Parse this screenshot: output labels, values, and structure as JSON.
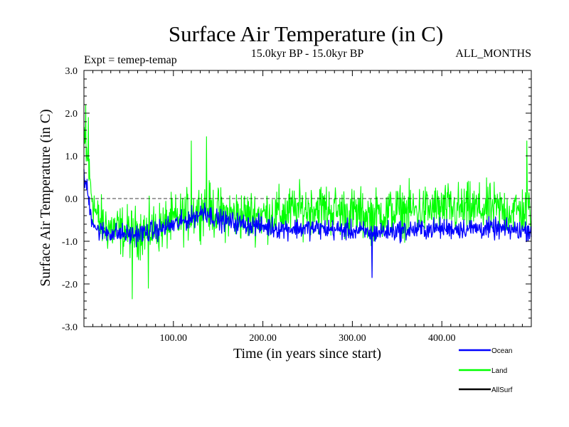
{
  "chart_data": {
    "type": "line",
    "title": "Surface Air Temperature (in C)",
    "subtitle_left": "Expt = temep-temap",
    "subtitle_center": "15.0kyr BP - 15.0kyr BP",
    "subtitle_right": "ALL_MONTHS",
    "xlabel": "Time (in years since start)",
    "ylabel": "Surface Air Temperature (in C)",
    "xlim": [
      0,
      500
    ],
    "ylim": [
      -3.0,
      3.0
    ],
    "x_ticks": [
      100,
      200,
      300,
      400
    ],
    "x_tick_labels": [
      "100.00",
      "200.00",
      "300.00",
      "400.00"
    ],
    "y_ticks": [
      3.0,
      2.0,
      1.0,
      0.0,
      -1.0,
      -2.0,
      -3.0
    ],
    "y_tick_labels": [
      "3.0",
      "2.0",
      "1.0",
      "0.0",
      "-1.0",
      "-2.0",
      "-3.0"
    ],
    "reference_line": 0.0,
    "x_step": 0.5,
    "series": [
      {
        "name": "Land",
        "color": "#00ff00",
        "trend": [
          [
            0,
            1.2
          ],
          [
            3,
            1.0
          ],
          [
            8,
            0.2
          ],
          [
            15,
            -0.5
          ],
          [
            30,
            -0.7
          ],
          [
            55,
            -0.8
          ],
          [
            80,
            -0.7
          ],
          [
            110,
            -0.45
          ],
          [
            135,
            -0.2
          ],
          [
            150,
            -0.35
          ],
          [
            180,
            -0.4
          ],
          [
            220,
            -0.35
          ],
          [
            260,
            -0.2
          ],
          [
            300,
            -0.35
          ],
          [
            320,
            -0.4
          ],
          [
            350,
            -0.3
          ],
          [
            400,
            -0.25
          ],
          [
            450,
            -0.25
          ],
          [
            490,
            -0.3
          ],
          [
            500,
            -0.25
          ]
        ],
        "amplitude": 0.55,
        "extremes": [
          [
            2,
            2.2
          ],
          [
            5,
            1.9
          ],
          [
            54,
            -2.35
          ],
          [
            72,
            -2.1
          ],
          [
            120,
            1.35
          ],
          [
            137,
            1.45
          ],
          [
            322,
            -1.7
          ],
          [
            495,
            1.35
          ]
        ]
      },
      {
        "name": "Ocean",
        "color": "#0000ff",
        "trend": [
          [
            0,
            0.45
          ],
          [
            3,
            0.3
          ],
          [
            8,
            -0.4
          ],
          [
            15,
            -0.75
          ],
          [
            30,
            -0.8
          ],
          [
            55,
            -0.85
          ],
          [
            80,
            -0.75
          ],
          [
            110,
            -0.55
          ],
          [
            135,
            -0.3
          ],
          [
            150,
            -0.5
          ],
          [
            180,
            -0.6
          ],
          [
            220,
            -0.7
          ],
          [
            260,
            -0.7
          ],
          [
            300,
            -0.75
          ],
          [
            320,
            -0.8
          ],
          [
            350,
            -0.75
          ],
          [
            400,
            -0.7
          ],
          [
            450,
            -0.7
          ],
          [
            490,
            -0.75
          ],
          [
            500,
            -0.72
          ]
        ],
        "amplitude": 0.22,
        "extremes": [
          [
            322,
            -1.85
          ],
          [
            135,
            -0.1
          ]
        ]
      },
      {
        "name": "AllSurf",
        "color": "#000000",
        "trend": [],
        "amplitude": 0,
        "extremes": []
      }
    ]
  },
  "legend": [
    {
      "label": "Ocean",
      "color": "#0000ff"
    },
    {
      "label": "Land",
      "color": "#00ff00"
    },
    {
      "label": "AllSurf",
      "color": "#000000"
    }
  ]
}
